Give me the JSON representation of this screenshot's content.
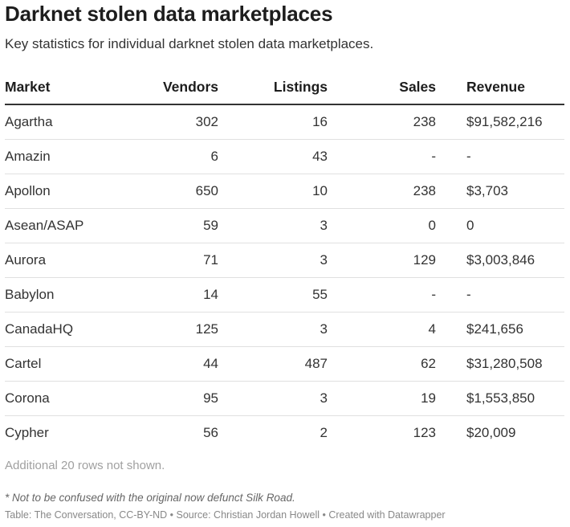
{
  "header": {
    "title": "Darknet stolen data marketplaces",
    "subtitle": "Key statistics for individual darknet stolen data marketplaces."
  },
  "table": {
    "columns": [
      "Market",
      "Vendors",
      "Listings",
      "Sales",
      "Revenue"
    ],
    "rows": [
      [
        "Agartha",
        "302",
        "16",
        "238",
        "$91,582,216"
      ],
      [
        "Amazin",
        "6",
        "43",
        "-",
        "-"
      ],
      [
        "Apollon",
        "650",
        "10",
        "238",
        "$3,703"
      ],
      [
        "Asean/ASAP",
        "59",
        "3",
        "0",
        "0"
      ],
      [
        "Aurora",
        "71",
        "3",
        "129",
        "$3,003,846"
      ],
      [
        "Babylon",
        "14",
        "55",
        "-",
        "-"
      ],
      [
        "CanadaHQ",
        "125",
        "3",
        "4",
        "$241,656"
      ],
      [
        "Cartel",
        "44",
        "487",
        "62",
        "$31,280,508"
      ],
      [
        "Corona",
        "95",
        "3",
        "19",
        "$1,553,850"
      ],
      [
        "Cypher",
        "56",
        "2",
        "123",
        "$20,009"
      ]
    ],
    "more_rows_note": "Additional 20 rows not shown."
  },
  "footer": {
    "footnote": "* Not to be confused with the original now defunct Silk Road.",
    "credit": "Table: The Conversation, CC-BY-ND • Source: Christian Jordan Howell • Created with Datawrapper"
  },
  "colors": {
    "text": "#1d1d1d",
    "header_rule": "#333333",
    "row_rule": "#e0e0e0",
    "muted": "#a0a0a0"
  }
}
